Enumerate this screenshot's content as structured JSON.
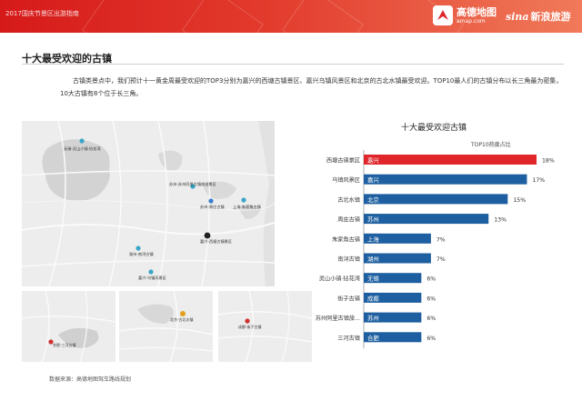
{
  "header": {
    "title": "2017国庆节景区出游指南",
    "amap_cn": "高德地图",
    "amap_en": "amap.com",
    "sina_word": "sina",
    "sina_cn": "新浪旅游"
  },
  "section": {
    "title": "十大最受欢迎的古镇",
    "intro": "古镇类景点中，我们预计十一黄金周最受欢迎的TOP3分别为嘉兴的西塘古镇景区、嘉兴乌镇风景区和北京的古北水镇最受欢迎。TOP10最人们的古镇分布以长三角最为密集，10大古镇有8个位于长三角。"
  },
  "map": {
    "labels": [
      {
        "text": "无锡-灵山小镇·拈花湾",
        "color": "#3aa6c8"
      },
      {
        "text": "苏州-苏州同里古镇旅游景区",
        "color": "#3aa6c8"
      },
      {
        "text": "苏州-周庄古镇",
        "color": "#3a7fd0"
      },
      {
        "text": "上海-朱家角古镇",
        "color": "#3aa6c8"
      },
      {
        "text": "嘉兴-西塘古镇景区",
        "color": "#222222"
      },
      {
        "text": "湖州-南浔古镇",
        "color": "#3aa6c8"
      },
      {
        "text": "嘉兴-乌镇风景区",
        "color": "#3aa6c8"
      }
    ],
    "small_labels": [
      {
        "text": "合肥-三河古镇",
        "color": "#d03030"
      },
      {
        "text": "北京-古北水镇",
        "color": "#e0a020"
      },
      {
        "text": "成都-街子古镇",
        "color": "#d03030"
      }
    ],
    "source": "数据来源：高德地图驾车路线规划"
  },
  "chart_data": {
    "type": "bar",
    "title": "十大最受欢迎古镇",
    "subtitle": "TOP10热度占比",
    "categories": [
      "西塘古镇景区",
      "乌镇风景区",
      "古北水镇",
      "周庄古镇",
      "朱家角古镇",
      "南浔古镇",
      "灵山小镇·拈花湾",
      "街子古镇",
      "苏州同里古镇旅...",
      "三河古镇"
    ],
    "cities": [
      "嘉兴",
      "嘉兴",
      "北京",
      "苏州",
      "上海",
      "湖州",
      "无锡",
      "成都",
      "苏州",
      "合肥"
    ],
    "values": [
      18,
      17,
      15,
      13,
      7,
      7,
      6,
      6,
      6,
      6
    ],
    "value_labels": [
      "18%",
      "17%",
      "15%",
      "13%",
      "7%",
      "7%",
      "6%",
      "6%",
      "6%",
      "6%"
    ],
    "unit": "%",
    "colors": {
      "highlight": "#e0262b",
      "normal": "#1d5fa0"
    },
    "xlim": [
      0,
      18
    ]
  }
}
